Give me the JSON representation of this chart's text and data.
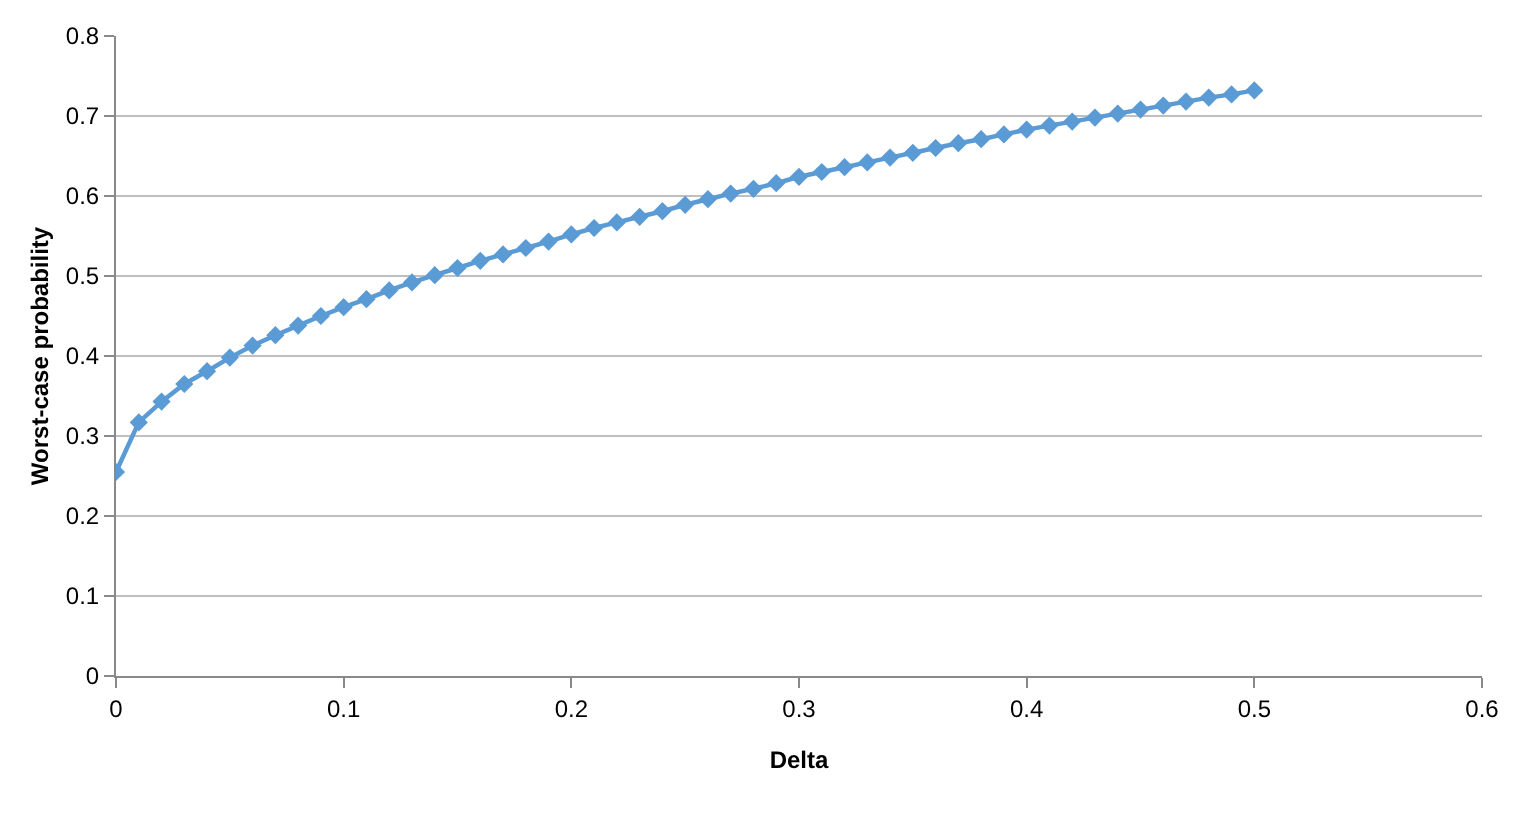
{
  "chart_data": {
    "type": "line",
    "xlabel": "Delta",
    "ylabel": "Worst-case probability",
    "x": [
      0,
      0.01,
      0.02,
      0.03,
      0.04,
      0.05,
      0.06,
      0.07,
      0.08,
      0.09,
      0.1,
      0.11,
      0.12,
      0.13,
      0.14,
      0.15,
      0.16,
      0.17,
      0.18,
      0.19,
      0.2,
      0.21,
      0.22,
      0.23,
      0.24,
      0.25,
      0.26,
      0.27,
      0.28,
      0.29,
      0.3,
      0.31,
      0.32,
      0.33,
      0.34,
      0.35,
      0.36,
      0.37,
      0.38,
      0.39,
      0.4,
      0.41,
      0.42,
      0.43,
      0.44,
      0.45,
      0.46,
      0.47,
      0.48,
      0.49,
      0.5
    ],
    "series": [
      {
        "color": "#5b9bd5",
        "values": [
          0.255,
          0.317,
          0.343,
          0.365,
          0.381,
          0.398,
          0.413,
          0.426,
          0.438,
          0.45,
          0.461,
          0.471,
          0.482,
          0.492,
          0.501,
          0.51,
          0.519,
          0.527,
          0.535,
          0.543,
          0.552,
          0.56,
          0.567,
          0.574,
          0.581,
          0.589,
          0.596,
          0.603,
          0.609,
          0.616,
          0.624,
          0.63,
          0.636,
          0.642,
          0.648,
          0.654,
          0.66,
          0.666,
          0.671,
          0.677,
          0.683,
          0.688,
          0.693,
          0.698,
          0.703,
          0.708,
          0.713,
          0.718,
          0.723,
          0.727,
          0.732
        ]
      }
    ],
    "xlim": [
      0,
      0.6
    ],
    "xticks": [
      0,
      0.1,
      0.2,
      0.3,
      0.4,
      0.5,
      0.6
    ],
    "ylim": [
      0,
      0.8
    ],
    "yticks": [
      0,
      0.1,
      0.2,
      0.3,
      0.4,
      0.5,
      0.6,
      0.7,
      0.8
    ],
    "grid": "y",
    "marker": "diamond",
    "line_style": "solid"
  }
}
